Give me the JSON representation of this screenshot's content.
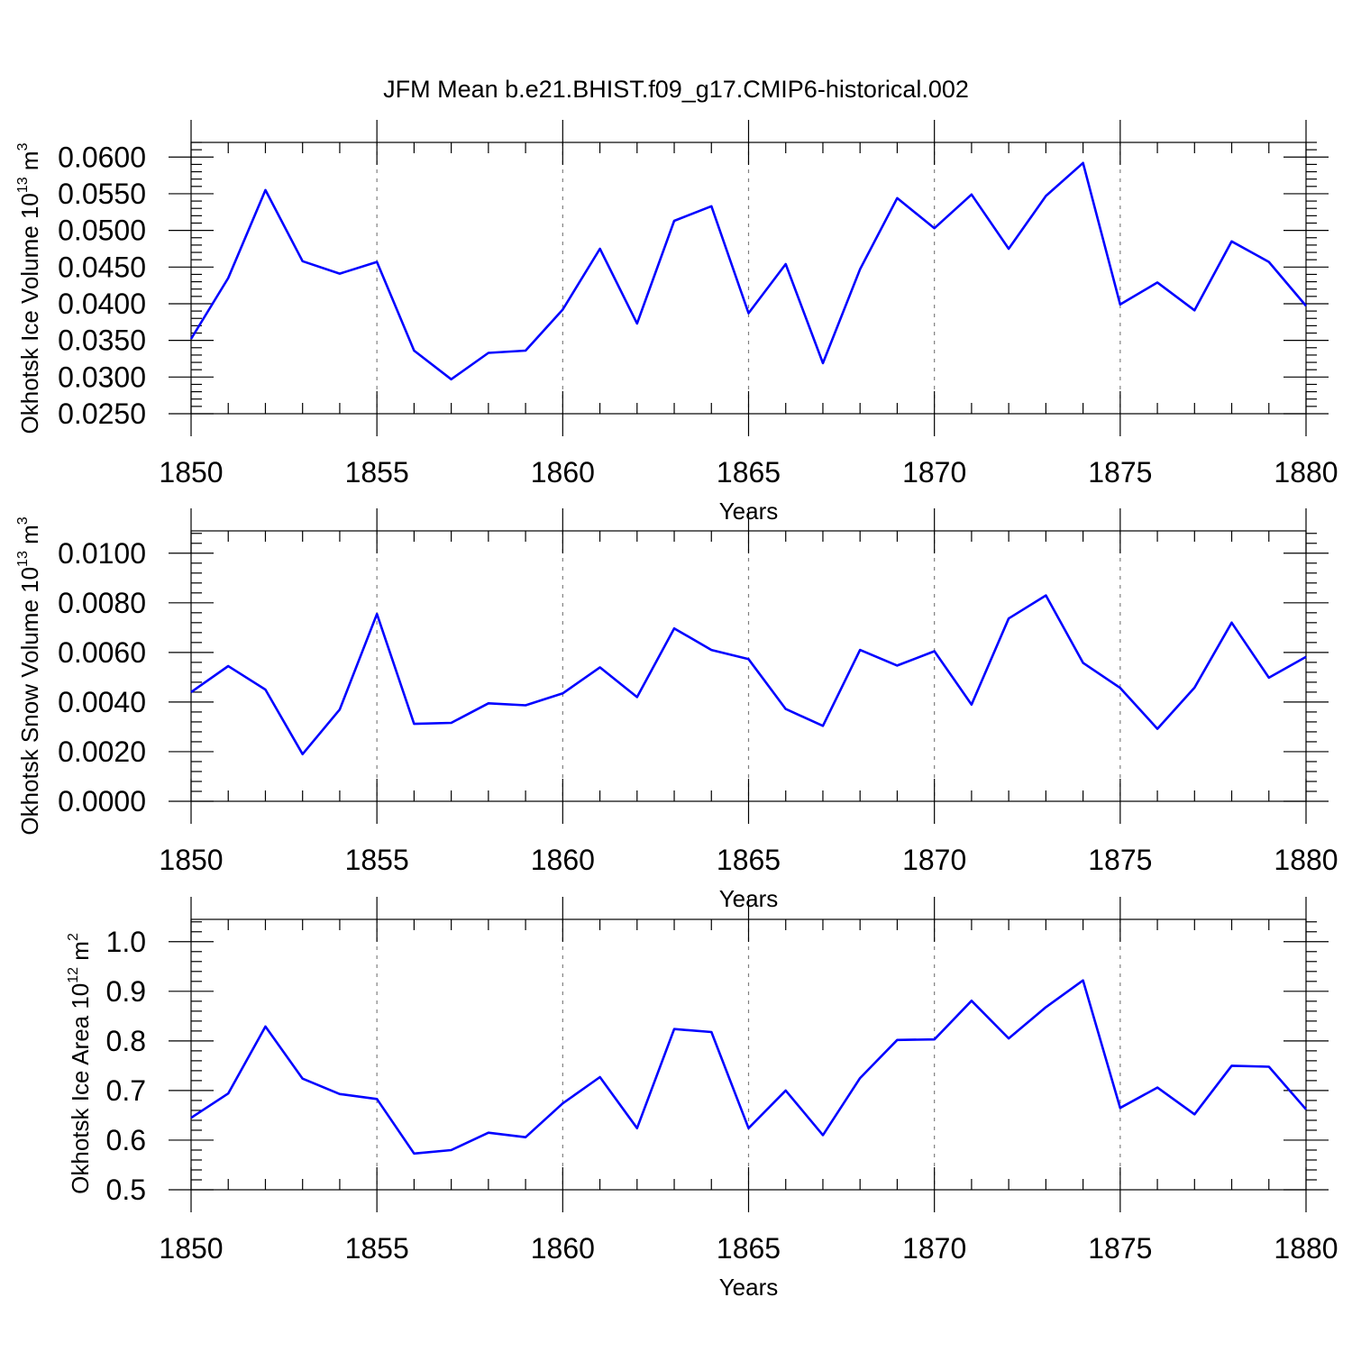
{
  "title": "JFM Mean b.e21.BHIST.f09_g17.CMIP6-historical.002",
  "chart_data": [
    {
      "type": "line",
      "ylabel_text": "Okhotsk Ice Volume 10",
      "ylabel_exp": "13",
      "ylabel_unit": " m",
      "ylabel_unit_exp": "3",
      "xlabel": "Years",
      "xlim": [
        1850,
        1880
      ],
      "ylim": [
        0.025,
        0.062
      ],
      "y_ticks": [
        0.025,
        0.03,
        0.035,
        0.04,
        0.045,
        0.05,
        0.055,
        0.06
      ],
      "y_tick_labels": [
        "0.0250",
        "0.0300",
        "0.0350",
        "0.0400",
        "0.0450",
        "0.0500",
        "0.0550",
        "0.0600"
      ],
      "y_minor_step": 0.001,
      "x_ticks": [
        1850,
        1855,
        1860,
        1865,
        1870,
        1875,
        1880
      ],
      "x_tick_labels": [
        "1850",
        "1855",
        "1860",
        "1865",
        "1870",
        "1875",
        "1880"
      ],
      "grid": "vertical dashed",
      "color": "#0000ff",
      "x": [
        1850,
        1851,
        1852,
        1853,
        1854,
        1855,
        1856,
        1857,
        1858,
        1859,
        1860,
        1861,
        1862,
        1863,
        1864,
        1865,
        1866,
        1867,
        1868,
        1869,
        1870,
        1871,
        1872,
        1873,
        1874,
        1875,
        1876,
        1877,
        1878,
        1879,
        1880
      ],
      "values": [
        0.0352,
        0.0435,
        0.0555,
        0.0458,
        0.0441,
        0.0457,
        0.0336,
        0.0297,
        0.0333,
        0.0336,
        0.0392,
        0.0475,
        0.0373,
        0.0513,
        0.0533,
        0.0387,
        0.0454,
        0.0319,
        0.0447,
        0.0544,
        0.0503,
        0.0549,
        0.0475,
        0.0547,
        0.0592,
        0.0399,
        0.0429,
        0.0391,
        0.0485,
        0.0457,
        0.0397
      ]
    },
    {
      "type": "line",
      "ylabel_text": "Okhotsk Snow Volume 10",
      "ylabel_exp": "13",
      "ylabel_unit": " m",
      "ylabel_unit_exp": "3",
      "xlabel": "Years",
      "xlim": [
        1850,
        1880
      ],
      "ylim": [
        0.0,
        0.0109
      ],
      "y_ticks": [
        0.0,
        0.002,
        0.004,
        0.006,
        0.008,
        0.01
      ],
      "y_tick_labels": [
        "0.0000",
        "0.0020",
        "0.0040",
        "0.0060",
        "0.0080",
        "0.0100"
      ],
      "y_minor_step": 0.0004,
      "x_ticks": [
        1850,
        1855,
        1860,
        1865,
        1870,
        1875,
        1880
      ],
      "x_tick_labels": [
        "1850",
        "1855",
        "1860",
        "1865",
        "1870",
        "1875",
        "1880"
      ],
      "grid": "vertical dashed",
      "color": "#0000ff",
      "x": [
        1850,
        1851,
        1852,
        1853,
        1854,
        1855,
        1856,
        1857,
        1858,
        1859,
        1860,
        1861,
        1862,
        1863,
        1864,
        1865,
        1866,
        1867,
        1868,
        1869,
        1870,
        1871,
        1872,
        1873,
        1874,
        1875,
        1876,
        1877,
        1878,
        1879,
        1880
      ],
      "values": [
        0.0044,
        0.00545,
        0.0045,
        0.0019,
        0.0037,
        0.00755,
        0.00312,
        0.00316,
        0.00395,
        0.00387,
        0.00435,
        0.0054,
        0.0042,
        0.00697,
        0.0061,
        0.00573,
        0.00372,
        0.00304,
        0.0061,
        0.00547,
        0.00605,
        0.0039,
        0.00737,
        0.0083,
        0.00558,
        0.00457,
        0.00292,
        0.00458,
        0.0072,
        0.00498,
        0.00582
      ]
    },
    {
      "type": "line",
      "ylabel_text": "Okhotsk Ice Area 10",
      "ylabel_exp": "12",
      "ylabel_unit": " m",
      "ylabel_unit_exp": "2",
      "xlabel": "Years",
      "xlim": [
        1850,
        1880
      ],
      "ylim": [
        0.5,
        1.045
      ],
      "y_ticks": [
        0.5,
        0.6,
        0.7,
        0.8,
        0.9,
        1.0
      ],
      "y_tick_labels": [
        "0.5",
        "0.6",
        "0.7",
        "0.8",
        "0.9",
        "1.0"
      ],
      "y_minor_step": 0.02,
      "x_ticks": [
        1850,
        1855,
        1860,
        1865,
        1870,
        1875,
        1880
      ],
      "x_tick_labels": [
        "1850",
        "1855",
        "1860",
        "1865",
        "1870",
        "1875",
        "1880"
      ],
      "grid": "vertical dashed",
      "color": "#0000ff",
      "x": [
        1850,
        1851,
        1852,
        1853,
        1854,
        1855,
        1856,
        1857,
        1858,
        1859,
        1860,
        1861,
        1862,
        1863,
        1864,
        1865,
        1866,
        1867,
        1868,
        1869,
        1870,
        1871,
        1872,
        1873,
        1874,
        1875,
        1876,
        1877,
        1878,
        1879,
        1880
      ],
      "values": [
        0.645,
        0.694,
        0.829,
        0.724,
        0.693,
        0.683,
        0.573,
        0.58,
        0.615,
        0.606,
        0.674,
        0.727,
        0.624,
        0.824,
        0.818,
        0.624,
        0.7,
        0.61,
        0.725,
        0.802,
        0.803,
        0.881,
        0.805,
        0.868,
        0.922,
        0.665,
        0.706,
        0.652,
        0.75,
        0.748,
        0.662
      ]
    }
  ]
}
